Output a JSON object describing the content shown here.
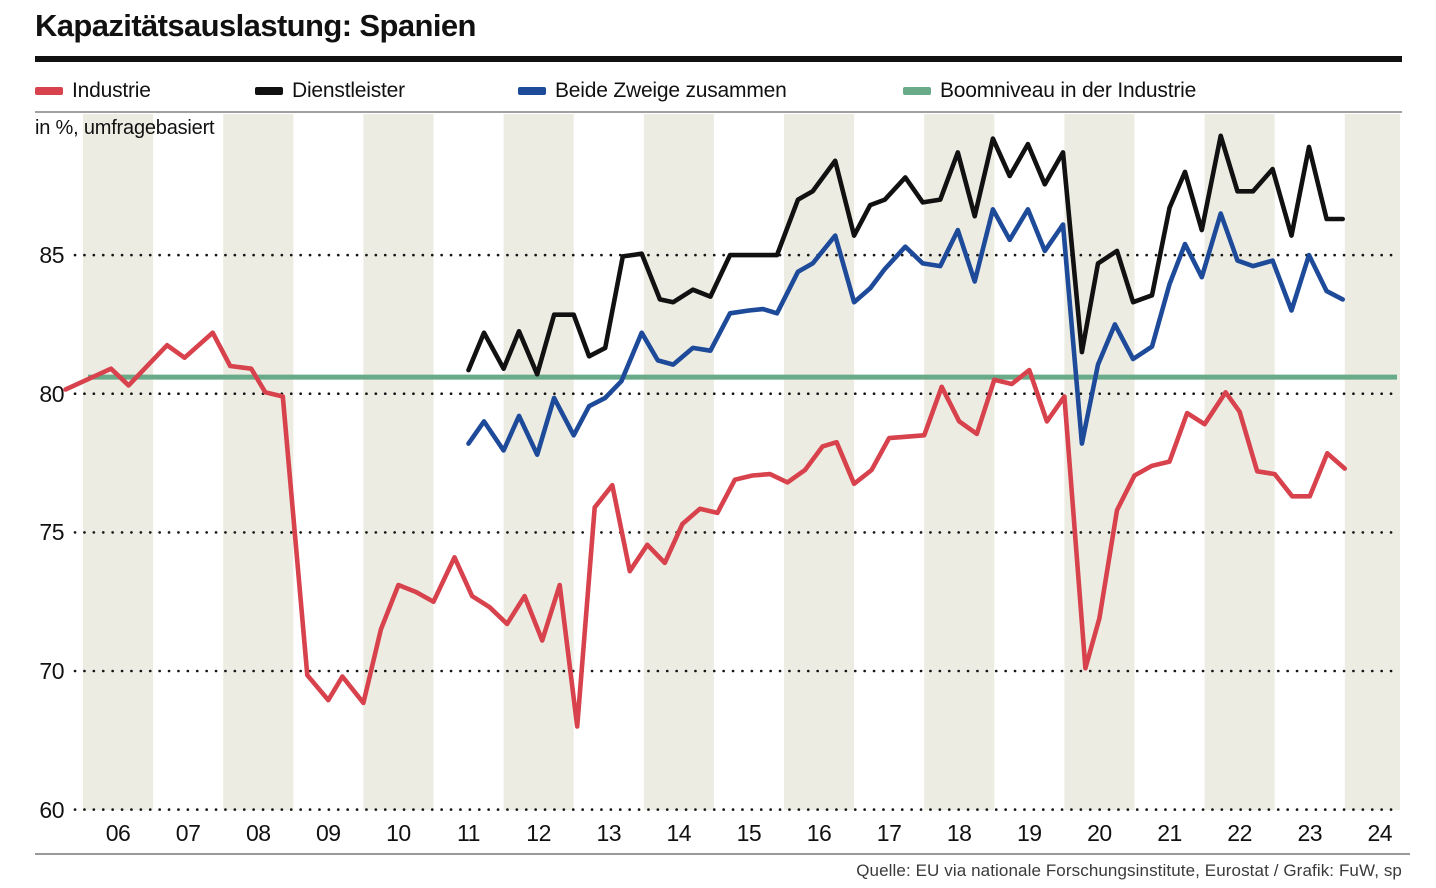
{
  "title": "Kapazitätsauslastung: Spanien",
  "subtitle": "in %, umfragebasiert",
  "source": "Quelle: EU via nationale Forschungsinstitute, Eurostat / Grafik: FuW, sp",
  "legend": {
    "items": [
      {
        "label": "Industrie",
        "color": "#d7424d"
      },
      {
        "label": "Dienstleister",
        "color": "#111111"
      },
      {
        "label": "Beide Zweige zusammen",
        "color": "#1e4a9a"
      },
      {
        "label": "Boomniveau in der Industrie",
        "color": "#69aa88"
      }
    ]
  },
  "colors": {
    "background": "#ffffff",
    "year_stripe": "#edece3",
    "gridline_dots": "#151515",
    "rules": "#9a9a9a",
    "title_bar": "#111111"
  },
  "chart_data": {
    "type": "line",
    "title": "Kapazitätsauslastung: Spanien",
    "subtitle": "in %, umfragebasiert",
    "ylabel": "in %, umfragebasiert",
    "x_axis": {
      "tick_labels": [
        "06",
        "07",
        "08",
        "09",
        "10",
        "11",
        "12",
        "13",
        "14",
        "15",
        "16",
        "17",
        "18",
        "19",
        "20",
        "21",
        "22",
        "23",
        "24"
      ],
      "tick_years": [
        2006,
        2007,
        2008,
        2009,
        2010,
        2011,
        2012,
        2013,
        2014,
        2015,
        2016,
        2017,
        2018,
        2019,
        2020,
        2021,
        2022,
        2023,
        2024
      ],
      "striped_years": [
        2006,
        2008,
        2010,
        2012,
        2014,
        2016,
        2018,
        2020,
        2022,
        2024
      ],
      "range_years": [
        2005.6,
        2024.8
      ]
    },
    "y_axis": {
      "unit": "%",
      "tick_values": [
        85,
        80,
        75,
        70,
        60
      ],
      "grid": "dotted",
      "note": "broken axis: interval 70-60 drawn at half scale (equal gridline spacing)",
      "visible_range_top": 90
    },
    "reference_line": {
      "name": "Boomniveau in der Industrie",
      "value": 80.6,
      "color": "#69aa88"
    },
    "series": [
      {
        "name": "Industrie",
        "color": "#d7424d",
        "points": [
          [
            2005.75,
            80.15
          ],
          [
            2006.4,
            80.9
          ],
          [
            2006.65,
            80.3
          ],
          [
            2007.2,
            81.75
          ],
          [
            2007.45,
            81.3
          ],
          [
            2007.85,
            82.2
          ],
          [
            2008.1,
            81.0
          ],
          [
            2008.4,
            80.9
          ],
          [
            2008.6,
            80.05
          ],
          [
            2008.85,
            79.9
          ],
          [
            2009.2,
            69.7
          ],
          [
            2009.5,
            67.9
          ],
          [
            2009.7,
            69.6
          ],
          [
            2010.0,
            67.7
          ],
          [
            2010.25,
            71.5
          ],
          [
            2010.5,
            73.1
          ],
          [
            2010.75,
            72.85
          ],
          [
            2011.0,
            72.5
          ],
          [
            2011.3,
            74.1
          ],
          [
            2011.55,
            72.7
          ],
          [
            2011.8,
            72.3
          ],
          [
            2012.05,
            71.7
          ],
          [
            2012.3,
            72.7
          ],
          [
            2012.55,
            71.1
          ],
          [
            2012.8,
            73.1
          ],
          [
            2013.05,
            66.0
          ],
          [
            2013.3,
            75.9
          ],
          [
            2013.55,
            76.7
          ],
          [
            2013.8,
            73.6
          ],
          [
            2014.05,
            74.55
          ],
          [
            2014.3,
            73.9
          ],
          [
            2014.55,
            75.3
          ],
          [
            2014.8,
            75.85
          ],
          [
            2015.05,
            75.7
          ],
          [
            2015.3,
            76.9
          ],
          [
            2015.55,
            77.05
          ],
          [
            2015.8,
            77.1
          ],
          [
            2016.05,
            76.8
          ],
          [
            2016.3,
            77.25
          ],
          [
            2016.55,
            78.1
          ],
          [
            2016.75,
            78.25
          ],
          [
            2017.0,
            76.75
          ],
          [
            2017.25,
            77.25
          ],
          [
            2017.5,
            78.4
          ],
          [
            2017.75,
            78.45
          ],
          [
            2018.0,
            78.5
          ],
          [
            2018.25,
            80.25
          ],
          [
            2018.5,
            79.0
          ],
          [
            2018.75,
            78.55
          ],
          [
            2019.0,
            80.5
          ],
          [
            2019.25,
            80.35
          ],
          [
            2019.5,
            80.85
          ],
          [
            2019.75,
            79.0
          ],
          [
            2020.0,
            79.9
          ],
          [
            2020.3,
            70.1
          ],
          [
            2020.5,
            71.9
          ],
          [
            2020.75,
            75.8
          ],
          [
            2021.0,
            77.05
          ],
          [
            2021.25,
            77.4
          ],
          [
            2021.5,
            77.55
          ],
          [
            2021.75,
            79.3
          ],
          [
            2022.0,
            78.9
          ],
          [
            2022.3,
            80.05
          ],
          [
            2022.5,
            79.35
          ],
          [
            2022.75,
            77.2
          ],
          [
            2023.0,
            77.1
          ],
          [
            2023.25,
            76.3
          ],
          [
            2023.5,
            76.3
          ],
          [
            2023.75,
            77.85
          ],
          [
            2024.0,
            77.3
          ]
        ]
      },
      {
        "name": "Dienstleister",
        "color": "#111111",
        "points": [
          [
            2011.5,
            80.85
          ],
          [
            2011.72,
            82.2
          ],
          [
            2012.0,
            80.9
          ],
          [
            2012.22,
            82.25
          ],
          [
            2012.48,
            80.7
          ],
          [
            2012.72,
            82.85
          ],
          [
            2013.0,
            82.85
          ],
          [
            2013.22,
            81.35
          ],
          [
            2013.45,
            81.65
          ],
          [
            2013.7,
            84.95
          ],
          [
            2013.97,
            85.05
          ],
          [
            2014.23,
            83.4
          ],
          [
            2014.42,
            83.3
          ],
          [
            2014.7,
            83.75
          ],
          [
            2014.95,
            83.5
          ],
          [
            2015.23,
            85.0
          ],
          [
            2015.5,
            85.0
          ],
          [
            2015.9,
            85.0
          ],
          [
            2016.2,
            87.0
          ],
          [
            2016.41,
            87.3
          ],
          [
            2016.73,
            88.4
          ],
          [
            2017.0,
            85.7
          ],
          [
            2017.23,
            86.8
          ],
          [
            2017.44,
            87.0
          ],
          [
            2017.73,
            87.8
          ],
          [
            2017.98,
            86.9
          ],
          [
            2018.23,
            87.0
          ],
          [
            2018.48,
            88.7
          ],
          [
            2018.72,
            86.4
          ],
          [
            2018.98,
            89.2
          ],
          [
            2019.22,
            87.85
          ],
          [
            2019.48,
            89.0
          ],
          [
            2019.72,
            87.55
          ],
          [
            2019.98,
            88.7
          ],
          [
            2020.25,
            81.5
          ],
          [
            2020.48,
            84.7
          ],
          [
            2020.75,
            85.15
          ],
          [
            2020.98,
            83.3
          ],
          [
            2021.25,
            83.55
          ],
          [
            2021.5,
            86.7
          ],
          [
            2021.72,
            88.0
          ],
          [
            2021.96,
            85.9
          ],
          [
            2022.23,
            89.3
          ],
          [
            2022.47,
            87.3
          ],
          [
            2022.69,
            87.3
          ],
          [
            2022.97,
            88.1
          ],
          [
            2023.24,
            85.7
          ],
          [
            2023.49,
            88.9
          ],
          [
            2023.74,
            86.3
          ],
          [
            2023.97,
            86.3
          ]
        ]
      },
      {
        "name": "Beide Zweige zusammen",
        "color": "#1e4a9a",
        "points": [
          [
            2011.5,
            78.2
          ],
          [
            2011.72,
            79.0
          ],
          [
            2012.0,
            77.95
          ],
          [
            2012.22,
            79.2
          ],
          [
            2012.48,
            77.8
          ],
          [
            2012.72,
            79.85
          ],
          [
            2013.0,
            78.5
          ],
          [
            2013.22,
            79.55
          ],
          [
            2013.45,
            79.85
          ],
          [
            2013.68,
            80.45
          ],
          [
            2013.97,
            82.2
          ],
          [
            2014.2,
            81.2
          ],
          [
            2014.42,
            81.05
          ],
          [
            2014.7,
            81.65
          ],
          [
            2014.95,
            81.55
          ],
          [
            2015.23,
            82.9
          ],
          [
            2015.5,
            83.0
          ],
          [
            2015.7,
            83.05
          ],
          [
            2015.9,
            82.9
          ],
          [
            2016.2,
            84.4
          ],
          [
            2016.41,
            84.7
          ],
          [
            2016.73,
            85.7
          ],
          [
            2017.0,
            83.3
          ],
          [
            2017.23,
            83.8
          ],
          [
            2017.44,
            84.5
          ],
          [
            2017.73,
            85.3
          ],
          [
            2017.98,
            84.7
          ],
          [
            2018.23,
            84.6
          ],
          [
            2018.48,
            85.9
          ],
          [
            2018.72,
            84.05
          ],
          [
            2018.98,
            86.65
          ],
          [
            2019.22,
            85.55
          ],
          [
            2019.48,
            86.65
          ],
          [
            2019.72,
            85.15
          ],
          [
            2019.98,
            86.1
          ],
          [
            2020.25,
            78.2
          ],
          [
            2020.48,
            81.05
          ],
          [
            2020.72,
            82.5
          ],
          [
            2020.98,
            81.25
          ],
          [
            2021.25,
            81.7
          ],
          [
            2021.5,
            83.95
          ],
          [
            2021.72,
            85.4
          ],
          [
            2021.96,
            84.2
          ],
          [
            2022.23,
            86.5
          ],
          [
            2022.47,
            84.8
          ],
          [
            2022.69,
            84.6
          ],
          [
            2022.97,
            84.8
          ],
          [
            2023.24,
            83.0
          ],
          [
            2023.49,
            85.0
          ],
          [
            2023.74,
            83.7
          ],
          [
            2023.97,
            83.4
          ]
        ]
      }
    ]
  }
}
